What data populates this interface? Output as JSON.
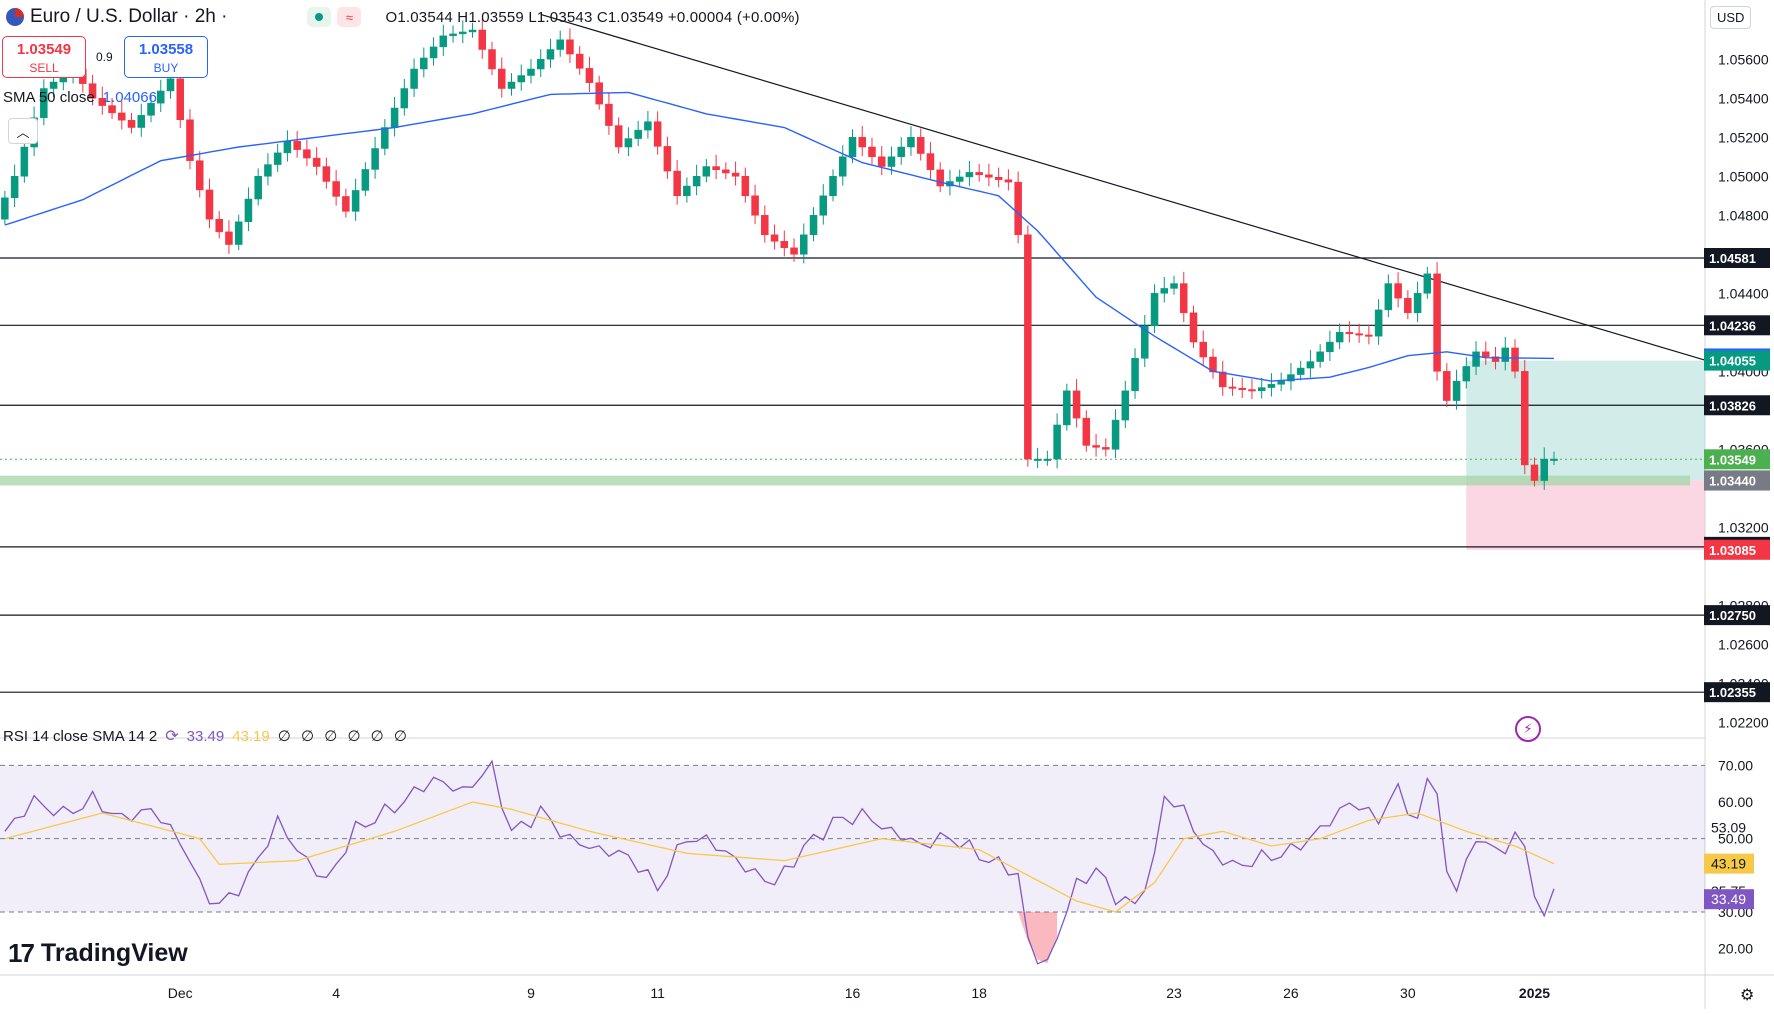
{
  "header": {
    "symbol": "Euro / U.S. Dollar · 2h ·",
    "ohlc": "O1.03544 H1.03559 L1.03543 C1.03549 +0.00004 (+0.00%)",
    "trend_icon": "≈"
  },
  "trade": {
    "sell_price": "1.03549",
    "sell_label": "SELL",
    "buy_price": "1.03558",
    "buy_label": "BUY",
    "spread": "0.9"
  },
  "sma_legend": {
    "label": "SMA 50 close",
    "value": "1.04066"
  },
  "rsi_legend": {
    "label": "RSI 14 close SMA 14 2",
    "rsi_value": "33.49",
    "sma_value": "43.19",
    "empty_values": "∅ ∅ ∅ ∅ ∅ ∅"
  },
  "branding": {
    "logo_mark": "17",
    "name": "TradingView"
  },
  "currency": "USD",
  "icons": {
    "flag": "eu-us-flag-icon",
    "collapse": "chevron-up-icon",
    "lightning": "lightning-icon",
    "settings": "gear-icon",
    "rsi_settings": "refresh-icon"
  },
  "colors": {
    "up": "#089981",
    "down": "#f23645",
    "sma": "#2962ff",
    "rsi": "#7e57c2",
    "rsi_sma": "#f7c948",
    "support_zone": "#a5d6a7",
    "profit_zone": "#b2dfdb",
    "loss_zone": "#f8bbd0"
  },
  "chart_data": {
    "type": "candlestick",
    "price_axis": {
      "ylim": [
        1.0212,
        1.0575
      ],
      "ticks": [
        "1.05600",
        "1.05400",
        "1.05200",
        "1.05000",
        "1.04800",
        "1.04400",
        "1.04000",
        "1.03600",
        "1.03200",
        "1.02800",
        "1.02600",
        "1.02400",
        "1.02200"
      ]
    },
    "x_axis": {
      "ticks": [
        {
          "label": "Dec",
          "index": 18
        },
        {
          "label": "4",
          "index": 34
        },
        {
          "label": "9",
          "index": 54
        },
        {
          "label": "11",
          "index": 67
        },
        {
          "label": "16",
          "index": 87
        },
        {
          "label": "18",
          "index": 100
        },
        {
          "label": "23",
          "index": 120
        },
        {
          "label": "26",
          "index": 132
        },
        {
          "label": "30",
          "index": 144
        },
        {
          "label": "2025",
          "index": 157
        }
      ],
      "bars_visible": 175
    },
    "horizontal_levels": [
      {
        "price": 1.04581,
        "label": "1.04581"
      },
      {
        "price": 1.04236,
        "label": "1.04236"
      },
      {
        "price": 1.03826,
        "label": "1.03826"
      },
      {
        "price": 1.031,
        "label": "1.03100"
      },
      {
        "price": 1.0275,
        "label": "1.02750"
      },
      {
        "price": 1.02355,
        "label": "1.02355"
      }
    ],
    "support_zone": [
      1.03415,
      1.03465
    ],
    "trendline": {
      "start": {
        "index": 55,
        "price": 1.0583
      },
      "end": {
        "index": 175,
        "price": 1.0405
      }
    },
    "position": {
      "start_index": 150,
      "entry": 1.03441,
      "target": 1.04055,
      "stop": 1.03085
    },
    "price_labels": [
      {
        "text": "1.04581",
        "price": 1.04581,
        "bg": "#131722"
      },
      {
        "text": "1.04236",
        "price": 1.04236,
        "bg": "#131722"
      },
      {
        "text": "1.04066",
        "price": 1.04066,
        "bg": "#2962ff"
      },
      {
        "text": "1.04055",
        "price": 1.04055,
        "bg": "#089981"
      },
      {
        "text": "1.03826",
        "price": 1.03826,
        "bg": "#131722"
      },
      {
        "text": "1.03549",
        "price": 1.03549,
        "bg": "#4caf50"
      },
      {
        "text": "1.03441",
        "price": 1.03441,
        "bg": "#4caf50"
      },
      {
        "text": "1.03440",
        "price": 1.0344,
        "bg": "#787b86"
      },
      {
        "text": "1.03100",
        "price": 1.031,
        "bg": "#131722"
      },
      {
        "text": "1.03085",
        "price": 1.03085,
        "bg": "#f23645"
      },
      {
        "text": "1.02750",
        "price": 1.0275,
        "bg": "#131722"
      },
      {
        "text": "1.02355",
        "price": 1.02355,
        "bg": "#131722"
      }
    ],
    "anchors": [
      [
        0,
        1.0478
      ],
      [
        2,
        1.05
      ],
      [
        5,
        1.0545
      ],
      [
        8,
        1.0555
      ],
      [
        10,
        1.054
      ],
      [
        14,
        1.0525
      ],
      [
        18,
        1.055
      ],
      [
        20,
        1.0508
      ],
      [
        22,
        1.0478
      ],
      [
        24,
        1.0465
      ],
      [
        27,
        1.05
      ],
      [
        30,
        1.0518
      ],
      [
        33,
        1.0505
      ],
      [
        36,
        1.0482
      ],
      [
        40,
        1.0525
      ],
      [
        43,
        1.0555
      ],
      [
        46,
        1.0572
      ],
      [
        49,
        1.0575
      ],
      [
        52,
        1.0545
      ],
      [
        55,
        1.0555
      ],
      [
        58,
        1.057
      ],
      [
        61,
        1.0548
      ],
      [
        64,
        1.0515
      ],
      [
        67,
        1.0528
      ],
      [
        70,
        1.049
      ],
      [
        73,
        1.0505
      ],
      [
        76,
        1.05
      ],
      [
        79,
        1.047
      ],
      [
        82,
        1.046
      ],
      [
        85,
        1.049
      ],
      [
        88,
        1.052
      ],
      [
        91,
        1.0505
      ],
      [
        94,
        1.052
      ],
      [
        97,
        1.0495
      ],
      [
        100,
        1.0502
      ],
      [
        104,
        1.0497
      ],
      [
        105,
        1.047
      ],
      [
        106,
        1.0355
      ],
      [
        108,
        1.0355
      ],
      [
        110,
        1.039
      ],
      [
        112,
        1.0362
      ],
      [
        114,
        1.036
      ],
      [
        116,
        1.039
      ],
      [
        119,
        1.044
      ],
      [
        121,
        1.0445
      ],
      [
        123,
        1.0415
      ],
      [
        126,
        1.0392
      ],
      [
        129,
        1.039
      ],
      [
        132,
        1.0395
      ],
      [
        135,
        1.0405
      ],
      [
        138,
        1.042
      ],
      [
        141,
        1.0418
      ],
      [
        143,
        1.0445
      ],
      [
        145,
        1.043
      ],
      [
        147,
        1.045
      ],
      [
        148,
        1.04
      ],
      [
        149,
        1.0385
      ],
      [
        150,
        1.0395
      ],
      [
        152,
        1.041
      ],
      [
        154,
        1.0405
      ],
      [
        155,
        1.0412
      ],
      [
        156,
        1.04
      ],
      [
        157,
        1.0352
      ],
      [
        158,
        1.0344
      ],
      [
        159,
        1.0355
      ]
    ],
    "sma50": [
      [
        0,
        1.0475
      ],
      [
        8,
        1.0488
      ],
      [
        16,
        1.0508
      ],
      [
        24,
        1.0515
      ],
      [
        32,
        1.052
      ],
      [
        40,
        1.0525
      ],
      [
        48,
        1.0532
      ],
      [
        56,
        1.0542
      ],
      [
        64,
        1.0543
      ],
      [
        72,
        1.0532
      ],
      [
        80,
        1.0525
      ],
      [
        88,
        1.0507
      ],
      [
        96,
        1.0497
      ],
      [
        102,
        1.049
      ],
      [
        106,
        1.0472
      ],
      [
        112,
        1.0438
      ],
      [
        118,
        1.0418
      ],
      [
        124,
        1.04
      ],
      [
        130,
        1.0395
      ],
      [
        136,
        1.0397
      ],
      [
        140,
        1.0402
      ],
      [
        144,
        1.0408
      ],
      [
        148,
        1.041
      ],
      [
        152,
        1.0407
      ],
      [
        159,
        1.04066
      ]
    ],
    "rsi_panel": {
      "ylim": [
        15,
        72
      ],
      "ticks": [
        "70.00",
        "60.00",
        "50.00",
        "30.00",
        "20.00"
      ],
      "bands": [
        30,
        50,
        70
      ],
      "extra_labels": [
        {
          "text": "53.09",
          "value": 53.09,
          "bg": "none"
        },
        {
          "text": "43.19",
          "value": 43.19,
          "bg": "#f7c948"
        },
        {
          "text": "35.75",
          "value": 35.75,
          "bg": "none"
        },
        {
          "text": "33.49",
          "value": 33.49,
          "bg": "#7e57c2"
        }
      ],
      "rsi_anchors": [
        [
          0,
          52
        ],
        [
          3,
          60
        ],
        [
          6,
          56
        ],
        [
          9,
          60
        ],
        [
          12,
          55
        ],
        [
          15,
          58
        ],
        [
          18,
          50
        ],
        [
          20,
          38
        ],
        [
          22,
          32
        ],
        [
          25,
          40
        ],
        [
          28,
          55
        ],
        [
          30,
          47
        ],
        [
          33,
          38
        ],
        [
          36,
          52
        ],
        [
          40,
          58
        ],
        [
          44,
          66
        ],
        [
          47,
          63
        ],
        [
          50,
          70
        ],
        [
          52,
          52
        ],
        [
          55,
          58
        ],
        [
          58,
          50
        ],
        [
          61,
          47
        ],
        [
          64,
          45
        ],
        [
          67,
          36
        ],
        [
          70,
          50
        ],
        [
          73,
          48
        ],
        [
          76,
          42
        ],
        [
          79,
          38
        ],
        [
          82,
          48
        ],
        [
          85,
          55
        ],
        [
          88,
          57
        ],
        [
          91,
          52
        ],
        [
          94,
          48
        ],
        [
          97,
          50
        ],
        [
          100,
          45
        ],
        [
          104,
          40
        ],
        [
          105,
          22
        ],
        [
          106,
          17
        ],
        [
          107,
          16
        ],
        [
          110,
          38
        ],
        [
          112,
          42
        ],
        [
          114,
          35
        ],
        [
          116,
          32
        ],
        [
          118,
          45
        ],
        [
          119,
          62
        ],
        [
          121,
          58
        ],
        [
          123,
          48
        ],
        [
          126,
          42
        ],
        [
          129,
          44
        ],
        [
          132,
          46
        ],
        [
          135,
          52
        ],
        [
          138,
          60
        ],
        [
          141,
          56
        ],
        [
          143,
          64
        ],
        [
          145,
          55
        ],
        [
          146,
          66
        ],
        [
          147,
          65
        ],
        [
          148,
          40
        ],
        [
          149,
          36
        ],
        [
          150,
          46
        ],
        [
          152,
          50
        ],
        [
          154,
          45
        ],
        [
          155,
          53
        ],
        [
          156,
          46
        ],
        [
          157,
          34
        ],
        [
          158,
          30
        ],
        [
          159,
          33.49
        ]
      ],
      "sma_anchors": [
        [
          0,
          50
        ],
        [
          10,
          57
        ],
        [
          20,
          50
        ],
        [
          22,
          43
        ],
        [
          30,
          44
        ],
        [
          40,
          52
        ],
        [
          48,
          60
        ],
        [
          52,
          58
        ],
        [
          60,
          52
        ],
        [
          70,
          46
        ],
        [
          80,
          44
        ],
        [
          90,
          50
        ],
        [
          100,
          47
        ],
        [
          105,
          40
        ],
        [
          110,
          33
        ],
        [
          114,
          30
        ],
        [
          118,
          38
        ],
        [
          121,
          50
        ],
        [
          125,
          52
        ],
        [
          130,
          48
        ],
        [
          135,
          50
        ],
        [
          140,
          55
        ],
        [
          145,
          57
        ],
        [
          150,
          52
        ],
        [
          155,
          48
        ],
        [
          159,
          43.19
        ]
      ]
    }
  }
}
